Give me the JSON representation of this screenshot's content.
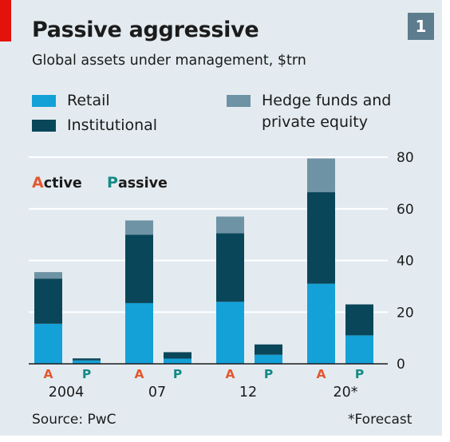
{
  "badge": "1",
  "colors": {
    "retail": "#14a1d8",
    "institutional": "#0a4659",
    "hedge": "#6e93a4",
    "active": "#e4572e",
    "passive": "#138a87"
  },
  "legend": {
    "retail": "Retail",
    "institutional": "Institutional",
    "hedge_line1": "Hedge funds and",
    "hedge_line2": "private equity"
  },
  "series_key": {
    "active_initial": "A",
    "active_rest": "ctive",
    "passive_initial": "P",
    "passive_rest": "assive"
  },
  "footer": {
    "source": "Source: PwC",
    "note": "*Forecast"
  },
  "chart_data": {
    "type": "bar",
    "stacked": true,
    "title": "Passive aggressive",
    "subtitle": "Global assets under management, $trn",
    "categories": [
      "2004",
      "07",
      "12",
      "20*"
    ],
    "sub_categories": [
      "A",
      "P"
    ],
    "ylim": [
      0,
      80
    ],
    "yticks": [
      0,
      20,
      40,
      60,
      80
    ],
    "y_axis_side": "right",
    "grid": true,
    "bars": [
      {
        "category": "2004",
        "type": "A",
        "retail": 15.5,
        "institutional": 17.5,
        "hedge": 2.5
      },
      {
        "category": "2004",
        "type": "P",
        "retail": 1.3,
        "institutional": 0.8,
        "hedge": 0
      },
      {
        "category": "07",
        "type": "A",
        "retail": 23.5,
        "institutional": 26.5,
        "hedge": 5.5
      },
      {
        "category": "07",
        "type": "P",
        "retail": 2.0,
        "institutional": 2.5,
        "hedge": 0
      },
      {
        "category": "12",
        "type": "A",
        "retail": 24.0,
        "institutional": 26.5,
        "hedge": 6.5
      },
      {
        "category": "12",
        "type": "P",
        "retail": 3.5,
        "institutional": 4.0,
        "hedge": 0
      },
      {
        "category": "20*",
        "type": "A",
        "retail": 31.0,
        "institutional": 35.5,
        "hedge": 13.0
      },
      {
        "category": "20*",
        "type": "P",
        "retail": 11.0,
        "institutional": 12.0,
        "hedge": 0
      }
    ]
  }
}
